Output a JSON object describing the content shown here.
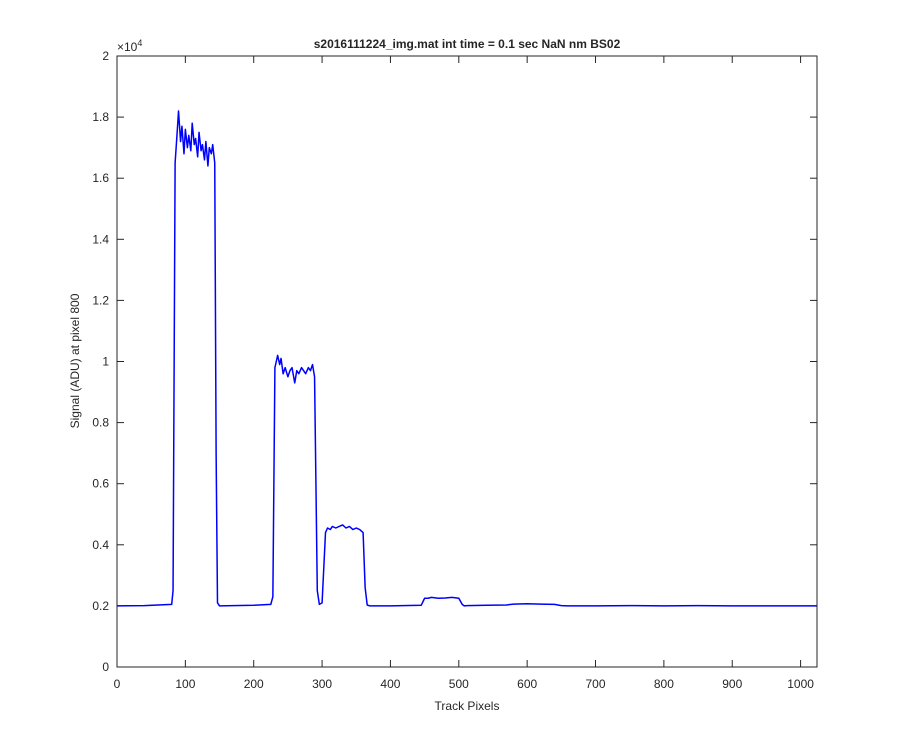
{
  "chart_data": {
    "type": "line",
    "title": "s2016111224_img.mat int time = 0.1 sec  NaN nm BS02",
    "xlabel": "Track Pixels",
    "ylabel": "Signal (ADU) at pixel 800",
    "y_exponent_label": "×10",
    "y_exponent_power": "4",
    "xlim": [
      0,
      1024
    ],
    "ylim": [
      0,
      20000
    ],
    "x_ticks": [
      0,
      100,
      200,
      300,
      400,
      500,
      600,
      700,
      800,
      900,
      1000
    ],
    "x_tick_labels": [
      "0",
      "100",
      "200",
      "300",
      "400",
      "500",
      "600",
      "700",
      "800",
      "900",
      "1000"
    ],
    "y_ticks": [
      0,
      2000,
      4000,
      6000,
      8000,
      10000,
      12000,
      14000,
      16000,
      18000,
      20000
    ],
    "y_tick_labels": [
      "0",
      "0.2",
      "0.4",
      "0.6",
      "0.8",
      "1",
      "1.2",
      "1.4",
      "1.6",
      "1.8",
      "2"
    ],
    "grid": false,
    "line_color": "#0000ff",
    "series": [
      {
        "x": [
          0,
          40,
          80,
          82,
          85,
          88,
          90,
          93,
          95,
          98,
          100,
          103,
          105,
          108,
          110,
          113,
          115,
          118,
          120,
          123,
          125,
          128,
          130,
          133,
          135,
          138,
          140,
          143,
          145,
          147,
          150,
          200,
          225,
          228,
          231,
          235,
          238,
          240,
          243,
          246,
          250,
          253,
          256,
          260,
          263,
          266,
          270,
          273,
          276,
          280,
          283,
          286,
          289,
          291,
          293,
          296,
          300,
          305,
          308,
          312,
          315,
          320,
          325,
          330,
          335,
          340,
          345,
          350,
          355,
          360,
          363,
          366,
          370,
          400,
          445,
          450,
          455,
          460,
          470,
          480,
          490,
          500,
          505,
          508,
          512,
          540,
          570,
          580,
          600,
          620,
          640,
          650,
          660,
          700,
          750,
          800,
          850,
          900,
          950,
          1000,
          1024
        ],
        "y": [
          2000,
          2010,
          2050,
          2500,
          16500,
          17500,
          18200,
          17200,
          17700,
          16800,
          17600,
          17000,
          17400,
          16900,
          17800,
          17100,
          17300,
          16700,
          17500,
          16900,
          17100,
          16600,
          17200,
          16400,
          17000,
          16800,
          17100,
          16500,
          7000,
          2100,
          2000,
          2020,
          2050,
          2300,
          9800,
          10200,
          9900,
          10100,
          9600,
          9800,
          9500,
          9700,
          9800,
          9300,
          9700,
          9600,
          9800,
          9700,
          9600,
          9800,
          9700,
          9900,
          9500,
          6000,
          2500,
          2050,
          2100,
          4400,
          4550,
          4500,
          4600,
          4550,
          4600,
          4650,
          4550,
          4600,
          4500,
          4550,
          4500,
          4400,
          2600,
          2030,
          2000,
          2000,
          2020,
          2250,
          2250,
          2280,
          2250,
          2260,
          2280,
          2250,
          2050,
          2000,
          2010,
          2020,
          2030,
          2060,
          2070,
          2060,
          2050,
          2010,
          2000,
          2000,
          2010,
          2000,
          2010,
          2000,
          2000,
          2000,
          2000
        ]
      }
    ]
  }
}
